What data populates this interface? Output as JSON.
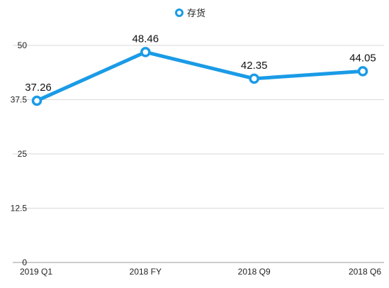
{
  "chart_data": {
    "type": "line",
    "categories": [
      "2019 Q1",
      "2018 FY",
      "2018 Q9",
      "2018 Q6"
    ],
    "series": [
      {
        "name": "存货",
        "values": [
          37.26,
          48.46,
          42.35,
          44.05
        ],
        "color": "#1a9be6"
      }
    ],
    "data_labels": [
      "37.26",
      "48.46",
      "42.35",
      "44.05"
    ],
    "y_ticks": [
      "0",
      "12.5",
      "25",
      "37.5",
      "50"
    ],
    "y_tick_values": [
      0,
      12.5,
      25,
      37.5,
      50
    ],
    "ylim": [
      0,
      50
    ],
    "legend": "top-center",
    "grid": true,
    "title": "",
    "xlabel": "",
    "ylabel": ""
  }
}
